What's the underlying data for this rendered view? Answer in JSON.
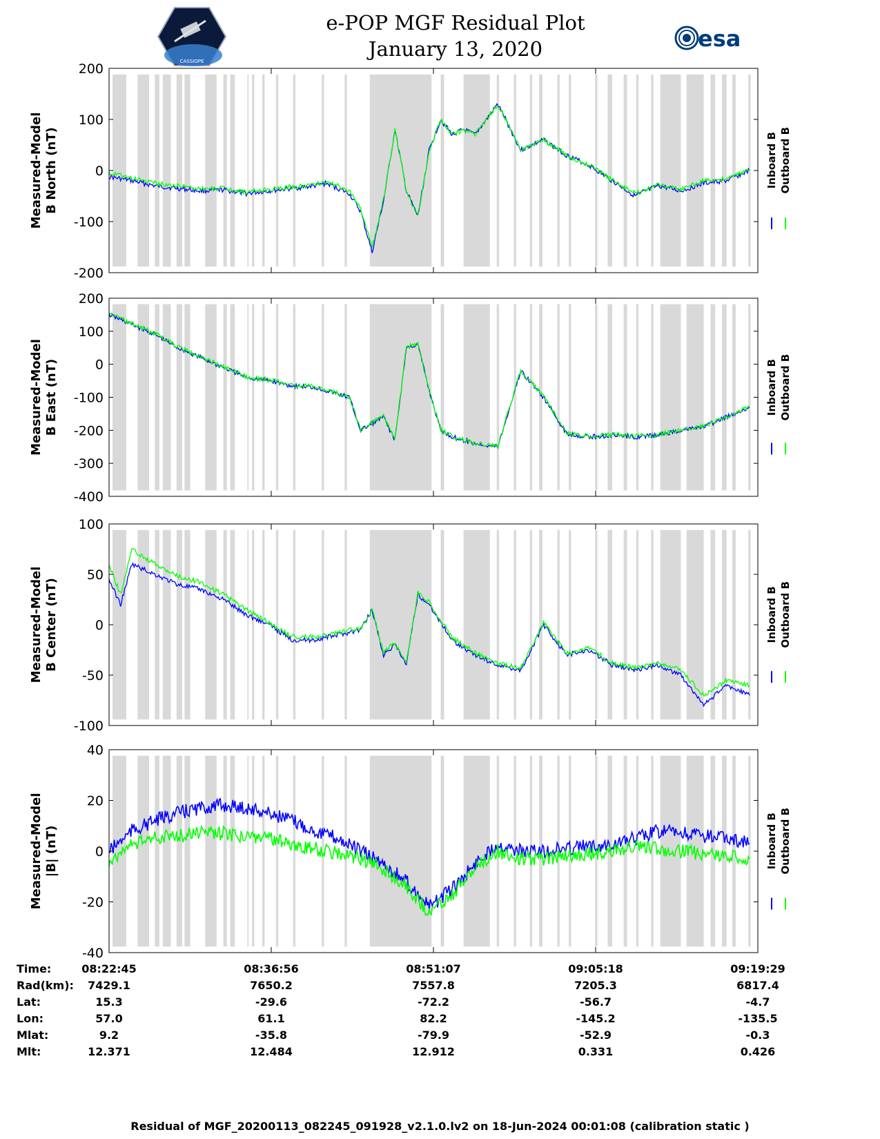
{
  "header": {
    "title_line1": "e-POP MGF Residual Plot",
    "title_line2": "January 13, 2020",
    "logo_left_text": "CASSIOPE",
    "logo_right_text": "esa"
  },
  "footer": {
    "text": "Residual of MGF_20200113_082245_091928_v2.1.0.lv2 on 18-Jun-2024 00:01:08 (calibration static )"
  },
  "colors": {
    "inboard": "#0000ff",
    "outboard": "#00ff00",
    "gap_shade": "#d9d9d9"
  },
  "chart_data": [
    {
      "type": "line",
      "ylabel": [
        "Measured-Model",
        "B North (nT)"
      ],
      "ylim": [
        -200,
        200
      ],
      "yticks": [
        200,
        100,
        0,
        -100,
        -200
      ],
      "legend": [
        "Inboard B",
        "Outboard B"
      ],
      "x_minutes": [
        0,
        2,
        4,
        6,
        8,
        10,
        12,
        14,
        16,
        18,
        19,
        20,
        21,
        22,
        23,
        24,
        25,
        26,
        27,
        28,
        29,
        30,
        31,
        32,
        34,
        36,
        38,
        40,
        42,
        44,
        46,
        48,
        50,
        52,
        54,
        56
      ],
      "series": [
        {
          "name": "Inboard B",
          "values": [
            -12,
            -20,
            -30,
            -35,
            -40,
            -38,
            -45,
            -40,
            -35,
            -30,
            -25,
            -35,
            -45,
            -80,
            -160,
            -60,
            80,
            -40,
            -90,
            40,
            100,
            70,
            80,
            70,
            130,
            40,
            60,
            30,
            10,
            -20,
            -50,
            -30,
            -40,
            -25,
            -20,
            0
          ]
        },
        {
          "name": "Outboard B",
          "values": [
            -5,
            -15,
            -25,
            -30,
            -36,
            -35,
            -42,
            -38,
            -32,
            -27,
            -22,
            -30,
            -40,
            -75,
            -150,
            -55,
            80,
            -40,
            -90,
            40,
            100,
            70,
            80,
            70,
            130,
            40,
            60,
            30,
            10,
            -18,
            -45,
            -28,
            -38,
            -20,
            -15,
            3
          ]
        }
      ]
    },
    {
      "type": "line",
      "ylabel": [
        "Measured-Model",
        "B East (nT)"
      ],
      "ylim": [
        -400,
        200
      ],
      "yticks": [
        200,
        100,
        0,
        -100,
        -200,
        -300,
        -400
      ],
      "legend": [
        "Inboard B",
        "Outboard B"
      ],
      "x_minutes": [
        0,
        2,
        4,
        6,
        8,
        10,
        12,
        14,
        16,
        18,
        19,
        20,
        21,
        22,
        23,
        24,
        25,
        26,
        27,
        28,
        29,
        30,
        31,
        32,
        34,
        36,
        38,
        40,
        42,
        44,
        46,
        48,
        50,
        52,
        54,
        56
      ],
      "series": [
        {
          "name": "Inboard B",
          "values": [
            150,
            120,
            90,
            50,
            20,
            -10,
            -40,
            -50,
            -65,
            -70,
            -80,
            -90,
            -100,
            -200,
            -180,
            -160,
            -230,
            50,
            60,
            -80,
            -200,
            -220,
            -230,
            -240,
            -250,
            -20,
            -100,
            -210,
            -220,
            -215,
            -220,
            -215,
            -200,
            -190,
            -160,
            -130
          ]
        },
        {
          "name": "Outboard B",
          "values": [
            155,
            124,
            93,
            53,
            22,
            -8,
            -38,
            -48,
            -63,
            -68,
            -78,
            -88,
            -98,
            -198,
            -178,
            -158,
            -228,
            52,
            62,
            -78,
            -198,
            -218,
            -228,
            -238,
            -248,
            -18,
            -98,
            -208,
            -218,
            -213,
            -218,
            -213,
            -198,
            -188,
            -158,
            -128
          ]
        }
      ]
    },
    {
      "type": "line",
      "ylabel": [
        "Measured-Model",
        "B Center (nT)"
      ],
      "ylim": [
        -100,
        100
      ],
      "yticks": [
        100,
        50,
        0,
        -50,
        -100
      ],
      "legend": [
        "Inboard B",
        "Outboard B"
      ],
      "x_minutes": [
        0,
        1,
        2,
        4,
        6,
        8,
        10,
        12,
        14,
        16,
        18,
        20,
        22,
        23,
        24,
        25,
        26,
        27,
        28,
        30,
        32,
        34,
        36,
        38,
        40,
        42,
        44,
        46,
        48,
        50,
        52,
        54,
        56
      ],
      "series": [
        {
          "name": "Inboard B",
          "values": [
            45,
            20,
            60,
            50,
            40,
            35,
            25,
            10,
            0,
            -15,
            -15,
            -10,
            -5,
            15,
            -30,
            -20,
            -40,
            30,
            20,
            -15,
            -30,
            -40,
            -45,
            0,
            -30,
            -25,
            -40,
            -45,
            -40,
            -50,
            -80,
            -60,
            -70
          ]
        },
        {
          "name": "Outboard B",
          "values": [
            60,
            30,
            75,
            60,
            48,
            42,
            30,
            15,
            2,
            -12,
            -12,
            -8,
            -3,
            15,
            -28,
            -18,
            -38,
            32,
            22,
            -13,
            -28,
            -38,
            -43,
            2,
            -28,
            -23,
            -38,
            -43,
            -38,
            -45,
            -70,
            -55,
            -60
          ]
        }
      ]
    },
    {
      "type": "line",
      "ylabel": [
        "Measured-Model",
        "|B| (nT)"
      ],
      "ylim": [
        -40,
        40
      ],
      "yticks": [
        40,
        20,
        0,
        -20,
        -40
      ],
      "legend": [
        "Inboard B",
        "Outboard B"
      ],
      "x_minutes": [
        0,
        2,
        4,
        6,
        8,
        10,
        12,
        14,
        16,
        18,
        20,
        22,
        24,
        26,
        28,
        30,
        32,
        34,
        36,
        38,
        40,
        42,
        44,
        46,
        48,
        50,
        52,
        54,
        56
      ],
      "series": [
        {
          "name": "Inboard B",
          "values": [
            0,
            8,
            12,
            15,
            17,
            18,
            17,
            15,
            12,
            8,
            5,
            0,
            -5,
            -12,
            -22,
            -15,
            -5,
            3,
            0,
            0,
            1,
            2,
            3,
            5,
            8,
            7,
            6,
            5,
            3
          ]
        },
        {
          "name": "Outboard B",
          "values": [
            -4,
            3,
            5,
            6,
            7,
            7,
            6,
            5,
            3,
            1,
            -1,
            -3,
            -7,
            -14,
            -24,
            -17,
            -7,
            0,
            -3,
            -3,
            -2,
            -1,
            0,
            2,
            1,
            0,
            -1,
            -2,
            -3
          ]
        }
      ]
    }
  ],
  "x_axis": {
    "range_minutes": [
      0,
      56.733
    ],
    "tick_minutes": [
      0,
      14.183,
      28.367,
      42.55,
      56.733
    ]
  },
  "ephemeris": {
    "row_labels": [
      "Time:",
      "Rad(km):",
      "Lat:",
      "Lon:",
      "Mlat:",
      "Mlt:"
    ],
    "columns": [
      [
        "08:22:45",
        "7429.1",
        "15.3",
        "57.0",
        "9.2",
        "12.371"
      ],
      [
        "08:36:56",
        "7650.2",
        "-29.6",
        "61.1",
        "-35.8",
        "12.484"
      ],
      [
        "08:51:07",
        "7557.8",
        "-72.2",
        "82.2",
        "-79.9",
        "12.912"
      ],
      [
        "09:05:18",
        "7205.3",
        "-56.7",
        "-145.2",
        "-52.9",
        "0.331"
      ],
      [
        "09:19:29",
        "6817.4",
        "-4.7",
        "-135.5",
        "-0.3",
        "0.426"
      ]
    ]
  },
  "gap_bands_minutes": [
    [
      0.3,
      1.5
    ],
    [
      2.5,
      3.5
    ],
    [
      4.0,
      4.4
    ],
    [
      4.7,
      5.4
    ],
    [
      5.9,
      6.4
    ],
    [
      6.6,
      7.1
    ],
    [
      8.4,
      9.4
    ],
    [
      10.0,
      10.3
    ],
    [
      10.6,
      11.0
    ],
    [
      12.1,
      12.2
    ],
    [
      12.5,
      12.7
    ],
    [
      13.4,
      13.6
    ],
    [
      14.6,
      14.8
    ],
    [
      16.1,
      16.3
    ],
    [
      18.6,
      18.8
    ],
    [
      20.6,
      20.8
    ],
    [
      22.8,
      28.2
    ],
    [
      29.0,
      29.3
    ],
    [
      31.0,
      33.3
    ],
    [
      33.9,
      34.1
    ],
    [
      35.4,
      35.6
    ],
    [
      36.8,
      37.0
    ],
    [
      37.6,
      37.9
    ],
    [
      39.2,
      39.4
    ],
    [
      40.2,
      40.4
    ],
    [
      42.5,
      42.7
    ],
    [
      43.6,
      44.0
    ],
    [
      45.0,
      45.3
    ],
    [
      46.1,
      46.3
    ],
    [
      47.4,
      47.6
    ],
    [
      48.2,
      50.0
    ],
    [
      50.5,
      52.0
    ],
    [
      52.6,
      53.0
    ],
    [
      53.6,
      54.0
    ],
    [
      54.5,
      54.8
    ],
    [
      55.9,
      56.1
    ]
  ]
}
